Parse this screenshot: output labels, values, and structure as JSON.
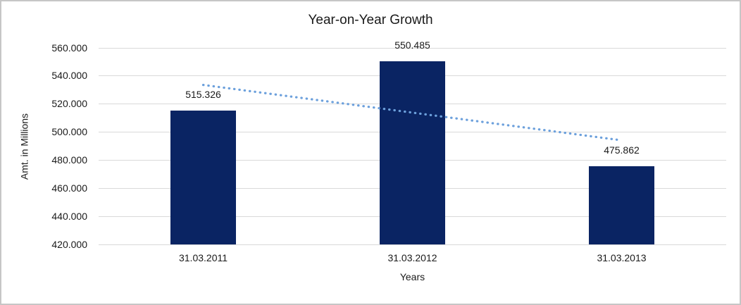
{
  "chart_data": {
    "type": "bar",
    "title": "Year-on-Year Growth",
    "xlabel": "Years",
    "ylabel": "Amt. in Millions",
    "categories": [
      "31.03.2011",
      "31.03.2012",
      "31.03.2013"
    ],
    "values": [
      515326,
      550485,
      475862
    ],
    "value_labels": [
      "515.326",
      "550.485",
      "475.862"
    ],
    "ylim": [
      420000,
      560000
    ],
    "ytick_step": 20000,
    "ytick_labels": [
      "420.000",
      "440.000",
      "460.000",
      "480.000",
      "500.000",
      "520.000",
      "540.000",
      "560.000"
    ],
    "grid": true,
    "legend": "none",
    "bar_color": "#0a2463",
    "grid_color": "#d9d9d9",
    "trendline": {
      "type": "linear",
      "style": "dotted",
      "color": "#6ca0dc"
    }
  }
}
